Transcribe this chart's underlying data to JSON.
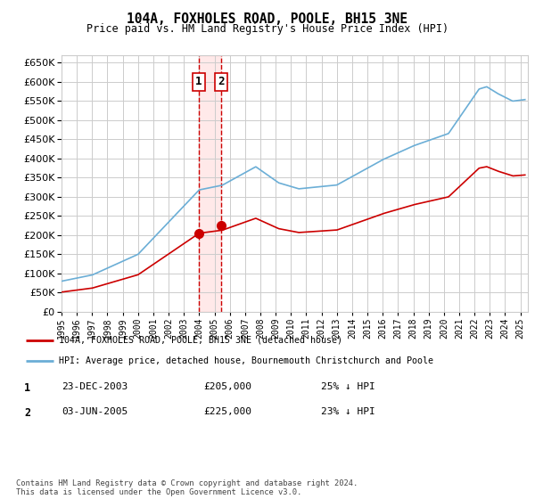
{
  "title": "104A, FOXHOLES ROAD, POOLE, BH15 3NE",
  "subtitle": "Price paid vs. HM Land Registry's House Price Index (HPI)",
  "legend_line1": "104A, FOXHOLES ROAD, POOLE, BH15 3NE (detached house)",
  "legend_line2": "HPI: Average price, detached house, Bournemouth Christchurch and Poole",
  "table_entries": [
    {
      "num": 1,
      "date": "23-DEC-2003",
      "price": "£205,000",
      "pct": "25% ↓ HPI"
    },
    {
      "num": 2,
      "date": "03-JUN-2005",
      "price": "£225,000",
      "pct": "23% ↓ HPI"
    }
  ],
  "footnote": "Contains HM Land Registry data © Crown copyright and database right 2024.\nThis data is licensed under the Open Government Licence v3.0.",
  "sale1_x": 2003.98,
  "sale1_y": 205000,
  "sale2_x": 2005.42,
  "sale2_y": 225000,
  "vline1_x": 2003.98,
  "vline2_x": 2005.42,
  "ylim": [
    0,
    670000
  ],
  "xlim_start": 1995.0,
  "xlim_end": 2025.5,
  "hpi_color": "#6baed6",
  "sale_color": "#cc0000",
  "background_color": "#ffffff",
  "grid_color": "#cccccc",
  "vline_color": "#cc0000",
  "shade_color": "#ffaaaa"
}
